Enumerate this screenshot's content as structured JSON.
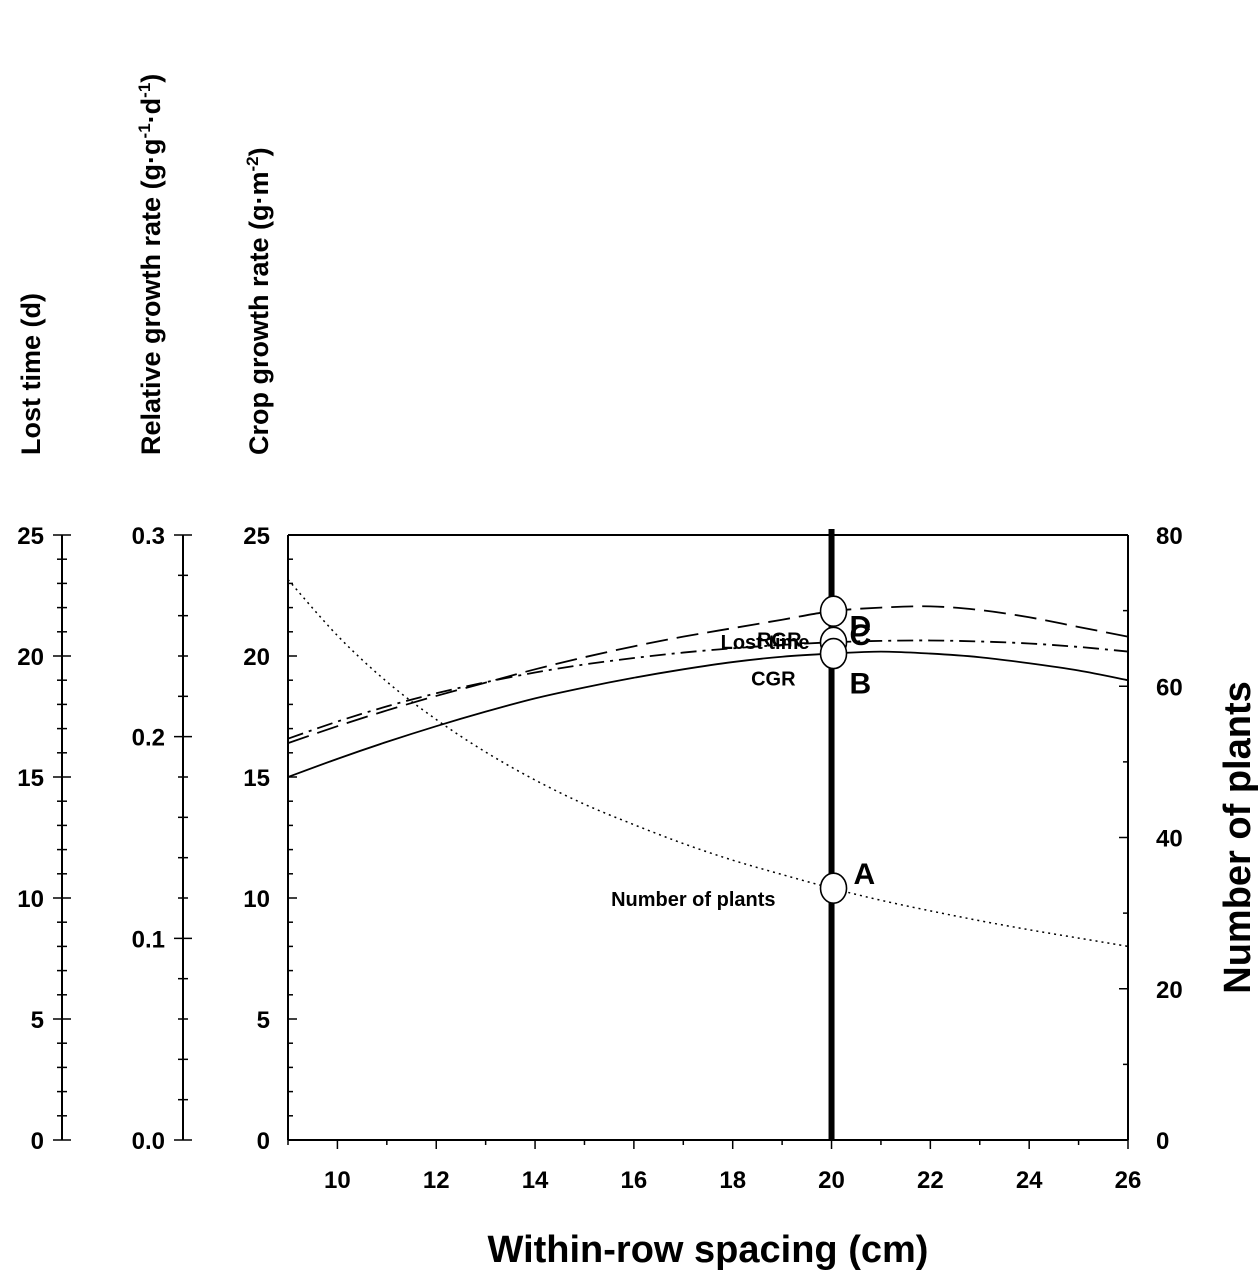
{
  "chart_data": {
    "type": "line",
    "xlabel": "Within-row spacing (cm)",
    "x_ticks": [
      10,
      12,
      14,
      16,
      18,
      20,
      22,
      24,
      26
    ],
    "xlim": [
      9,
      26
    ],
    "left_axes": [
      {
        "id": "lost_time",
        "label": "Lost time (d)",
        "label_parts": [
          {
            "t": "Lost time (d)"
          }
        ],
        "ylim": [
          0,
          25
        ],
        "tick_labels": [
          "0",
          "5",
          "10",
          "15",
          "20",
          "25"
        ],
        "tick_values": [
          0,
          5,
          10,
          15,
          20,
          25
        ],
        "minor_step": 1
      },
      {
        "id": "rgr",
        "label": "Relative growth rate (g·g-1·d-1)",
        "label_parts": [
          {
            "t": "Relative growth rate (g"
          },
          {
            "t": "·"
          },
          {
            "t": "g"
          },
          {
            "t": "-1",
            "sup": true
          },
          {
            "t": "·"
          },
          {
            "t": "d"
          },
          {
            "t": "-1",
            "sup": true
          },
          {
            "t": ")"
          }
        ],
        "ylim": [
          0,
          0.3
        ],
        "tick_labels": [
          "0.0",
          "0.1",
          "0.2",
          "0.3"
        ],
        "tick_values": [
          0,
          0.1,
          0.2,
          0.3
        ],
        "minor_step": 0.02
      },
      {
        "id": "cgr",
        "label": "Crop growth rate (g·m-2)",
        "label_parts": [
          {
            "t": "Crop growth rate (g"
          },
          {
            "t": "·"
          },
          {
            "t": "m"
          },
          {
            "t": "-2",
            "sup": true
          },
          {
            "t": ")"
          }
        ],
        "ylim": [
          0,
          25
        ],
        "tick_labels": [
          "0",
          "5",
          "10",
          "15",
          "20",
          "25"
        ],
        "tick_values": [
          0,
          5,
          10,
          15,
          20,
          25
        ],
        "minor_step": 1
      }
    ],
    "right_axis": {
      "label": "Number of plants",
      "ylim": [
        0,
        80
      ],
      "tick_labels": [
        "0",
        "20",
        "40",
        "60",
        "80"
      ],
      "tick_values": [
        0,
        20,
        40,
        60,
        80
      ],
      "minor_step": 10
    },
    "series": [
      {
        "name": "RGR",
        "axis": "rgr",
        "style": "dashdot",
        "x": [
          9,
          10,
          11,
          12,
          13,
          14,
          15,
          16,
          17,
          18,
          19,
          20,
          21,
          22,
          23,
          24,
          25,
          26
        ],
        "y": [
          0.199,
          0.2075,
          0.215,
          0.2215,
          0.227,
          0.2318,
          0.2358,
          0.239,
          0.2417,
          0.2438,
          0.2455,
          0.2468,
          0.2475,
          0.2477,
          0.2472,
          0.2462,
          0.2445,
          0.2422
        ]
      },
      {
        "name": "Lost time",
        "axis": "lost_time",
        "style": "dashed",
        "x": [
          9,
          10,
          11,
          12,
          13,
          14,
          15,
          16,
          17,
          18,
          19,
          20,
          21,
          22,
          23,
          24,
          25,
          26
        ],
        "y": [
          16.4,
          17.1,
          17.75,
          18.35,
          18.9,
          19.45,
          19.95,
          20.4,
          20.8,
          21.15,
          21.5,
          21.85,
          22.0,
          22.05,
          21.9,
          21.6,
          21.2,
          20.8
        ]
      },
      {
        "name": "CGR",
        "axis": "cgr",
        "style": "solid",
        "x": [
          9,
          10,
          11,
          12,
          13,
          14,
          15,
          16,
          17,
          18,
          19,
          20,
          21,
          22,
          23,
          24,
          25,
          26
        ],
        "y": [
          15.0,
          15.75,
          16.45,
          17.1,
          17.7,
          18.25,
          18.7,
          19.1,
          19.45,
          19.75,
          19.97,
          20.1,
          20.18,
          20.1,
          19.95,
          19.7,
          19.4,
          19.0
        ]
      },
      {
        "name": "Number of plants",
        "axis": "right",
        "style": "dotted",
        "x": [
          9,
          10,
          11,
          12,
          13,
          14,
          15,
          16,
          17,
          18,
          19,
          20,
          21,
          22,
          23,
          24,
          25,
          26
        ],
        "y": [
          74.1,
          66.7,
          60.6,
          55.6,
          51.3,
          47.6,
          44.4,
          41.7,
          39.2,
          37.0,
          35.1,
          33.3,
          31.7,
          30.3,
          29.0,
          27.8,
          26.7,
          25.6
        ]
      }
    ],
    "vertical_line": {
      "x": 20
    },
    "markers": [
      {
        "letter": "D",
        "label": "RGR",
        "axis": "rgr",
        "x": 20,
        "y": 0.2468
      },
      {
        "letter": "C",
        "label": "Lost time",
        "axis": "lost_time",
        "x": 20,
        "y": 21.85
      },
      {
        "letter": "B",
        "label": "CGR",
        "axis": "cgr",
        "x": 20,
        "y": 20.1
      },
      {
        "letter": "A",
        "label": "Number of plants",
        "axis": "right",
        "x": 20,
        "y": 33.3
      }
    ]
  }
}
